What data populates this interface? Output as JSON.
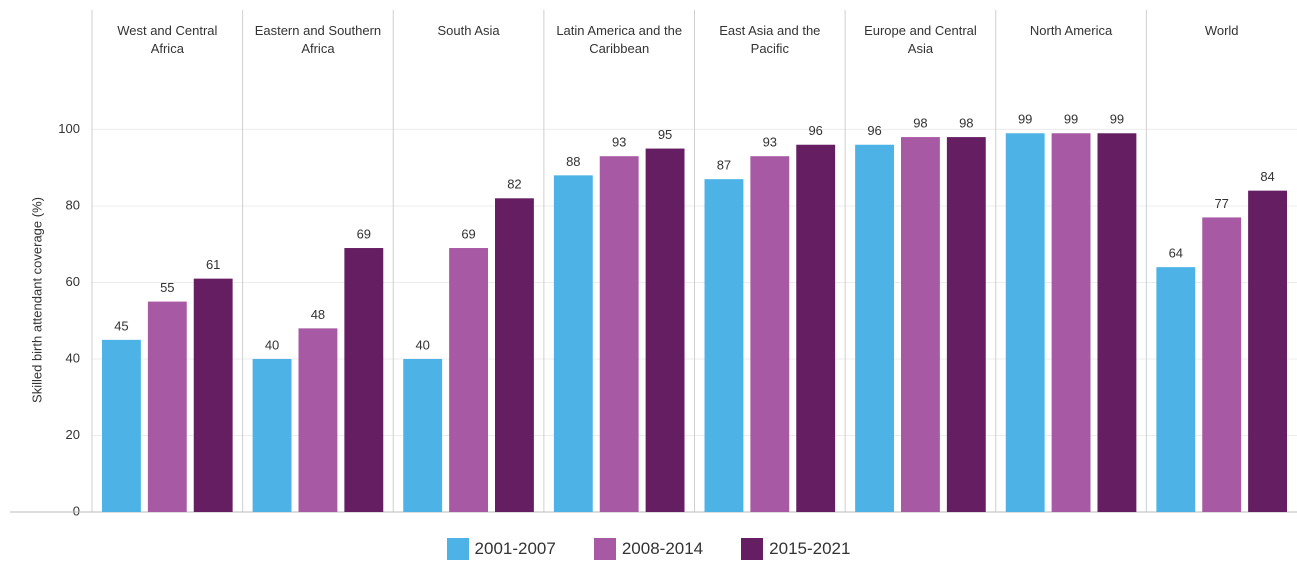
{
  "chart_data": {
    "type": "bar",
    "y_label": "Skilled birth attendant coverage (%)",
    "categories": [
      "West and Central Africa",
      "Eastern and Southern Africa",
      "South Asia",
      "Latin America and the Caribbean",
      "East Asia and the Pacific",
      "Europe and Central Asia",
      "North America",
      "World"
    ],
    "series": [
      {
        "name": "2001-2007",
        "color": "#4db3e6",
        "values": [
          45,
          40,
          40,
          88,
          87,
          96,
          99,
          64
        ]
      },
      {
        "name": "2008-2014",
        "color": "#a859a3",
        "values": [
          55,
          48,
          69,
          93,
          93,
          98,
          99,
          77
        ]
      },
      {
        "name": "2015-2021",
        "color": "#651e62",
        "values": [
          61,
          69,
          82,
          95,
          96,
          98,
          99,
          84
        ]
      }
    ],
    "ylim": [
      0,
      109
    ],
    "yticks": [
      0,
      20,
      40,
      60,
      80,
      100
    ],
    "grid": true
  }
}
